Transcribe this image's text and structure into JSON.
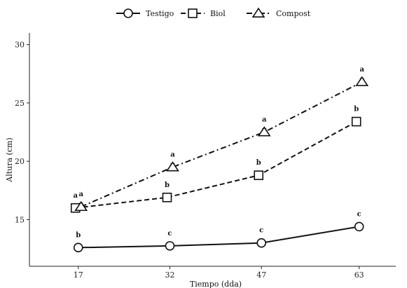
{
  "chart_data": {
    "type": "line",
    "title": "",
    "xlabel": "Tiempo (dda)",
    "ylabel": "Altura (cm)",
    "x": [
      17,
      32,
      47,
      63
    ],
    "x_tick_labels": [
      "17",
      "32",
      "47",
      "63"
    ],
    "y_ticks": [
      15,
      20,
      25,
      30
    ],
    "y_tick_labels": [
      "15",
      "20",
      "25",
      "30"
    ],
    "ylim": [
      11,
      31
    ],
    "xlim": [
      9,
      69
    ],
    "grid": false,
    "legend_position": "top-center",
    "series": [
      {
        "name": "Testigo",
        "marker": "circle",
        "line_style": "solid",
        "values": [
          12.6,
          12.75,
          13.0,
          14.4
        ],
        "error": [
          0.3,
          0.3,
          0.3,
          0.3
        ],
        "labels": [
          "b",
          "c",
          "c",
          "c"
        ]
      },
      {
        "name": "Biol",
        "marker": "square",
        "line_style": "dashed",
        "values": [
          16.0,
          16.9,
          18.8,
          23.4
        ],
        "error": [
          0.3,
          0.3,
          0.3,
          0.3
        ],
        "labels": [
          "a",
          "b",
          "b",
          "b"
        ]
      },
      {
        "name": "Compost",
        "marker": "triangle",
        "line_style": "dashdot",
        "values": [
          16.1,
          19.5,
          22.5,
          26.8
        ],
        "error": [
          0.3,
          0.3,
          0.3,
          0.3
        ],
        "labels": [
          "a",
          "a",
          "a",
          "a"
        ]
      }
    ]
  }
}
